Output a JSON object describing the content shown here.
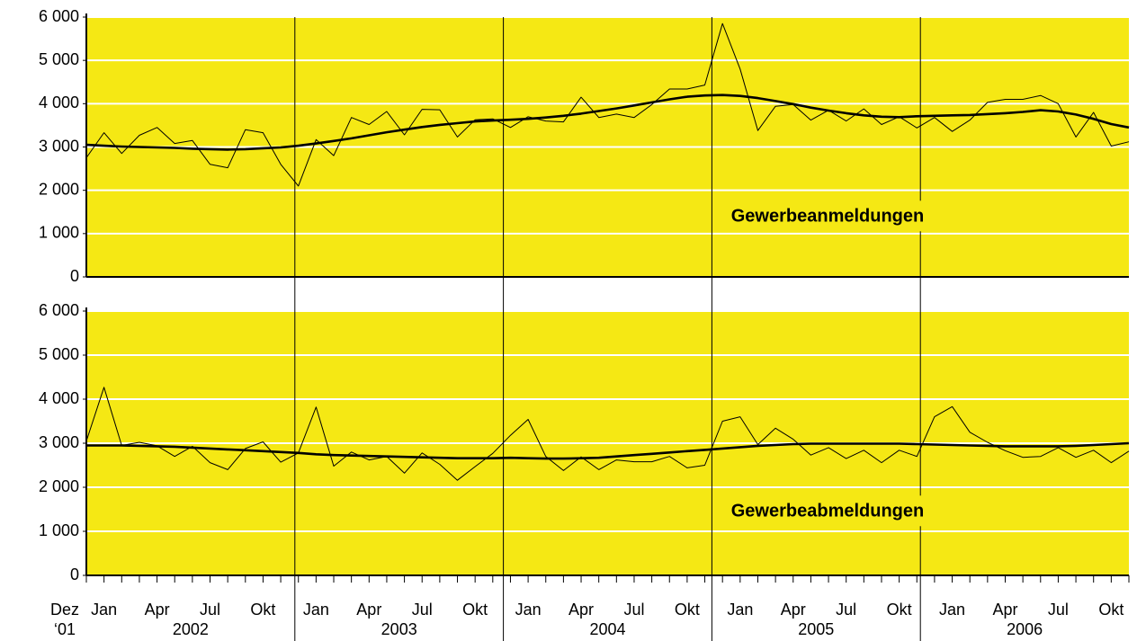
{
  "chart_data": [
    {
      "type": "line",
      "annotation": "Gewerbeanmeldungen",
      "background": "#f5e814",
      "grid": true,
      "ylim": [
        0,
        6000
      ],
      "yticks": [
        0,
        {
          "value": 1000,
          "label": "1 000"
        },
        {
          "value": 2000,
          "label": "2 000"
        },
        {
          "value": 3000,
          "label": "3 000"
        },
        {
          "value": 4000,
          "label": "4 000"
        },
        {
          "value": 5000,
          "label": "5 000"
        },
        {
          "value": 6000,
          "label": "6 000"
        }
      ],
      "series": [
        {
          "color": "#000000",
          "width": 1,
          "values": [
            2750,
            3330,
            2850,
            3270,
            3450,
            3080,
            3150,
            2600,
            2520,
            3400,
            3330,
            2600,
            2100,
            3170,
            2800,
            3680,
            3520,
            3820,
            3280,
            3870,
            3860,
            3230,
            3630,
            3650,
            3450,
            3700,
            3600,
            3580,
            4150,
            3680,
            3760,
            3680,
            3980,
            4340,
            4340,
            4430,
            5850,
            4800,
            3380,
            3940,
            3980,
            3620,
            3850,
            3600,
            3880,
            3520,
            3700,
            3440,
            3680,
            3360,
            3620,
            4030,
            4100,
            4100,
            4190,
            4000,
            3230,
            3800,
            3020,
            3120
          ]
        },
        {
          "color": "#000000",
          "width": 2.6,
          "values": [
            3050,
            3030,
            3010,
            3000,
            2990,
            2980,
            2960,
            2950,
            2940,
            2950,
            2970,
            2990,
            3030,
            3080,
            3140,
            3200,
            3270,
            3340,
            3400,
            3460,
            3510,
            3550,
            3590,
            3610,
            3630,
            3650,
            3680,
            3720,
            3770,
            3830,
            3890,
            3960,
            4030,
            4100,
            4160,
            4190,
            4200,
            4180,
            4130,
            4060,
            3990,
            3910,
            3840,
            3780,
            3730,
            3700,
            3690,
            3710,
            3720,
            3730,
            3740,
            3760,
            3780,
            3810,
            3850,
            3820,
            3750,
            3650,
            3530,
            3450
          ]
        }
      ]
    },
    {
      "type": "line",
      "annotation": "Gewerbeabmeldungen",
      "background": "#f5e814",
      "grid": true,
      "ylim": [
        0,
        6000
      ],
      "yticks": [
        0,
        {
          "value": 1000,
          "label": "1 000"
        },
        {
          "value": 2000,
          "label": "2 000"
        },
        {
          "value": 3000,
          "label": "3 000"
        },
        {
          "value": 4000,
          "label": "4 000"
        },
        {
          "value": 5000,
          "label": "5 000"
        },
        {
          "value": 6000,
          "label": "6 000"
        }
      ],
      "categories": [
        "Dez\n‘01",
        "Jan",
        null,
        null,
        "Apr",
        null,
        null,
        "Jul",
        null,
        null,
        "Okt",
        null,
        null,
        "Jan",
        null,
        null,
        "Apr",
        null,
        null,
        "Jul",
        null,
        null,
        "Okt",
        null,
        null,
        "Jan",
        null,
        null,
        "Apr",
        null,
        null,
        "Jul",
        null,
        null,
        "Okt",
        null,
        null,
        "Jan",
        null,
        null,
        "Apr",
        null,
        null,
        "Jul",
        null,
        null,
        "Okt",
        null,
        null,
        "Jan",
        null,
        null,
        "Apr",
        null,
        null,
        "Jul",
        null,
        null,
        "Okt",
        null
      ],
      "years": [
        "2002",
        "2003",
        "2004",
        "2005",
        "2006"
      ],
      "series": [
        {
          "color": "#000000",
          "width": 1,
          "values": [
            3050,
            4270,
            2950,
            3020,
            2940,
            2700,
            2930,
            2560,
            2400,
            2880,
            3030,
            2570,
            2780,
            3820,
            2480,
            2800,
            2620,
            2700,
            2320,
            2780,
            2520,
            2160,
            2470,
            2770,
            3180,
            3540,
            2700,
            2380,
            2690,
            2400,
            2620,
            2580,
            2580,
            2700,
            2440,
            2500,
            3500,
            3600,
            2970,
            3340,
            3090,
            2730,
            2900,
            2650,
            2840,
            2560,
            2840,
            2700,
            3600,
            3830,
            3250,
            3020,
            2830,
            2680,
            2700,
            2900,
            2680,
            2840,
            2560,
            2820
          ]
        },
        {
          "color": "#000000",
          "width": 2.6,
          "values": [
            2950,
            2950,
            2950,
            2940,
            2930,
            2920,
            2900,
            2880,
            2860,
            2840,
            2820,
            2800,
            2780,
            2750,
            2730,
            2720,
            2710,
            2700,
            2690,
            2680,
            2670,
            2660,
            2660,
            2660,
            2670,
            2660,
            2650,
            2650,
            2660,
            2670,
            2700,
            2730,
            2760,
            2790,
            2820,
            2850,
            2880,
            2910,
            2940,
            2960,
            2980,
            2990,
            2990,
            2990,
            2990,
            2990,
            2990,
            2980,
            2970,
            2960,
            2950,
            2940,
            2930,
            2930,
            2930,
            2930,
            2940,
            2960,
            2980,
            3000
          ]
        }
      ]
    }
  ]
}
